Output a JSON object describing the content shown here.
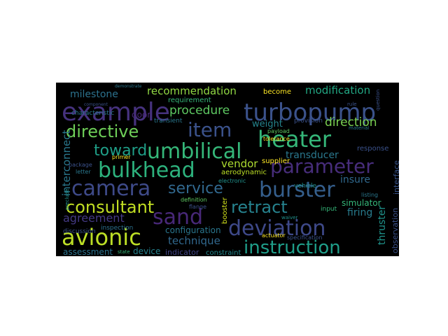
{
  "words": [
    {
      "text": "example",
      "color": "#46327e"
    },
    {
      "text": "turbopump",
      "color": "#3b528b"
    },
    {
      "text": "item",
      "color": "#3b528b"
    },
    {
      "text": "heater",
      "color": "#35b779"
    },
    {
      "text": "directive",
      "color": "#6ece58"
    },
    {
      "text": "umbilical",
      "color": "#35b779"
    },
    {
      "text": "bulkhead",
      "color": "#2db27d"
    },
    {
      "text": "parameter",
      "color": "#472d7b"
    },
    {
      "text": "camera",
      "color": "#3e4a89"
    },
    {
      "text": "service",
      "color": "#31688e"
    },
    {
      "text": "burster",
      "color": "#355f8d"
    },
    {
      "text": "consultant",
      "color": "#c2df23"
    },
    {
      "text": "sand",
      "color": "#482878"
    },
    {
      "text": "retract",
      "color": "#26828e"
    },
    {
      "text": "deviation",
      "color": "#3e4989"
    },
    {
      "text": "avionic",
      "color": "#bddf26"
    },
    {
      "text": "instruction",
      "color": "#1f9e89"
    },
    {
      "text": "toward",
      "color": "#1f9f88"
    },
    {
      "text": "procedure",
      "color": "#5ec962"
    },
    {
      "text": "direction",
      "color": "#7ad151"
    },
    {
      "text": "weight",
      "color": "#25848e"
    },
    {
      "text": "recommendation",
      "color": "#90d743"
    },
    {
      "text": "milestone",
      "color": "#2c728e"
    },
    {
      "text": "modification",
      "color": "#22a884"
    },
    {
      "text": "transducer",
      "color": "#2a788e"
    },
    {
      "text": "agreement",
      "color": "#443983"
    },
    {
      "text": "technique",
      "color": "#31688e"
    },
    {
      "text": "vendor",
      "color": "#addc30"
    },
    {
      "text": "insure",
      "color": "#30698e"
    },
    {
      "text": "firing",
      "color": "#287c8e"
    },
    {
      "text": "thruster",
      "color": "#1f948c"
    },
    {
      "text": "interconnect",
      "color": "#2a788e"
    },
    {
      "text": "configuration",
      "color": "#2a768e"
    },
    {
      "text": "simulator",
      "color": "#35b779"
    },
    {
      "text": "interface",
      "color": "#39558c"
    },
    {
      "text": "observation",
      "color": "#3b528b"
    },
    {
      "text": "assessment",
      "color": "#2c738e"
    },
    {
      "text": "device",
      "color": "#26828e"
    },
    {
      "text": "indicator",
      "color": "#414487"
    },
    {
      "text": "constraint",
      "color": "#23898e"
    },
    {
      "text": "aerodynamic",
      "color": "#bddf26"
    },
    {
      "text": "booster",
      "color": "#d2e21b"
    },
    {
      "text": "supplier",
      "color": "#fde725"
    },
    {
      "text": "become",
      "color": "#fde725"
    },
    {
      "text": "requirement",
      "color": "#35b779"
    },
    {
      "text": "characteristic",
      "color": "#2a788e"
    },
    {
      "text": "response",
      "color": "#3b528b"
    },
    {
      "text": "electronic",
      "color": "#21918c"
    },
    {
      "text": "inspection",
      "color": "#2c728e"
    },
    {
      "text": "discussion",
      "color": "#3b528b"
    },
    {
      "text": "definition",
      "color": "#5ec962"
    },
    {
      "text": "vehicle",
      "color": "#21918c"
    },
    {
      "text": "input",
      "color": "#35b779"
    },
    {
      "text": "specification",
      "color": "#3b528b"
    },
    {
      "text": "actuator",
      "color": "#fde725"
    },
    {
      "text": "state",
      "color": "#35b779"
    },
    {
      "text": "door",
      "color": "#482878"
    },
    {
      "text": "transient",
      "color": "#2a788e"
    },
    {
      "text": "provision",
      "color": "#3b528b"
    },
    {
      "text": "payload",
      "color": "#5ec962"
    },
    {
      "text": "tolerance",
      "color": "#fde725"
    },
    {
      "text": "listing",
      "color": "#2a788e"
    },
    {
      "text": "flange",
      "color": "#3b528b"
    },
    {
      "text": "primer",
      "color": "#fde725"
    },
    {
      "text": "package",
      "color": "#3b528b"
    },
    {
      "text": "letter",
      "color": "#2a788e"
    },
    {
      "text": "waiver",
      "color": "#21918c"
    },
    {
      "text": "component",
      "color": "#3b528b"
    },
    {
      "text": "demonstrate",
      "color": "#2a788e"
    },
    {
      "text": "rule",
      "color": "#3b528b"
    },
    {
      "text": "material",
      "color": "#2a788e"
    },
    {
      "text": "question",
      "color": "#3b528b"
    },
    {
      "text": "preclude",
      "color": "#21918c"
    }
  ]
}
